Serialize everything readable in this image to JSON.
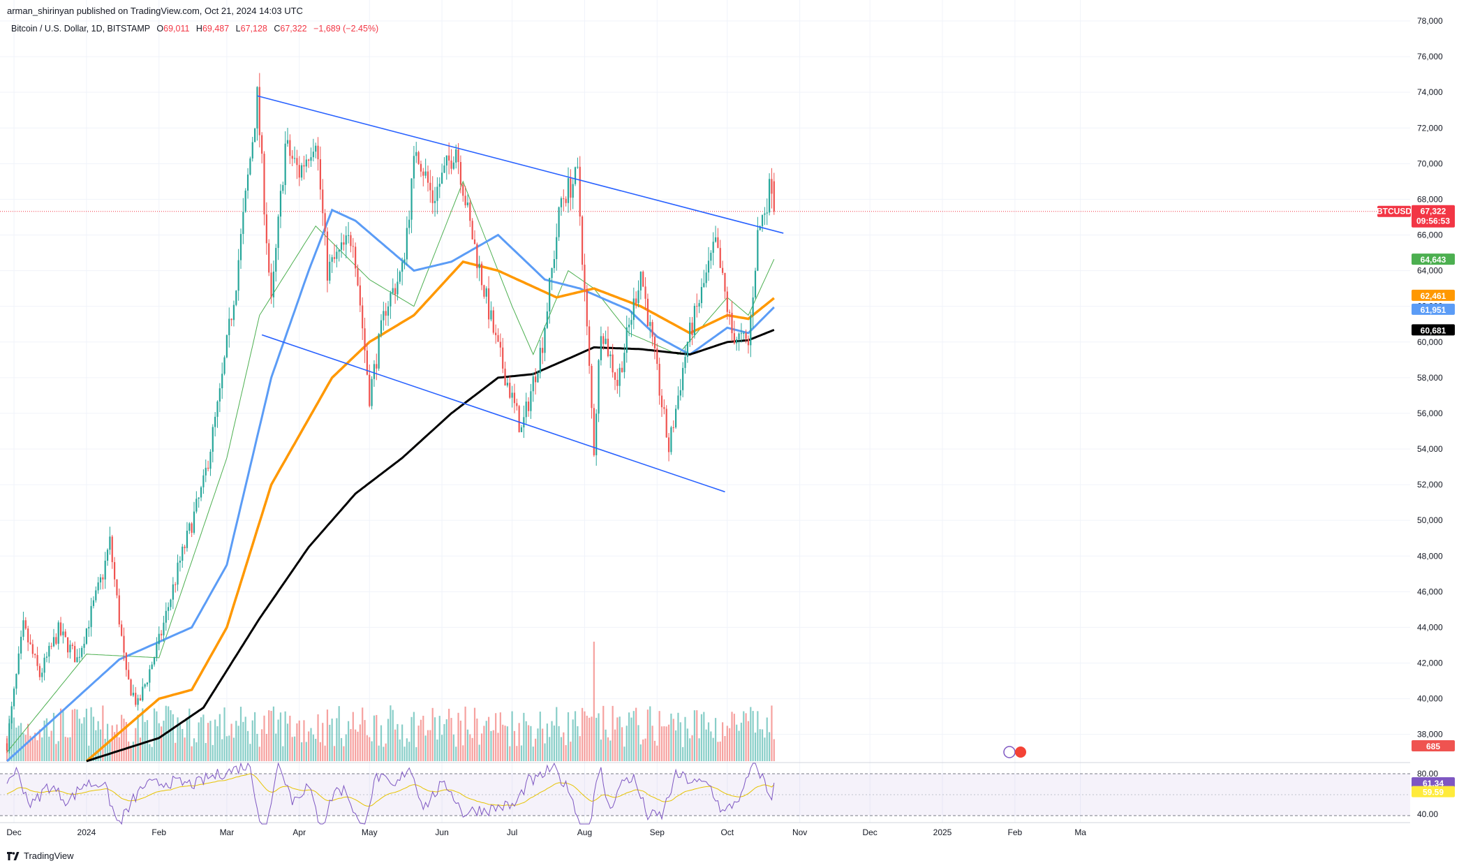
{
  "publisher": "arman_shirinyan published on TradingView.com, Oct 21, 2024 14:03 UTC",
  "header": {
    "symbol": "Bitcoin / U.S. Dollar, 1D, BITSTAMP",
    "o_label": "O",
    "o": "69,011",
    "h_label": "H",
    "h": "69,487",
    "l_label": "L",
    "l": "67,128",
    "c_label": "C",
    "c": "67,322",
    "change": "−1,689 (−2.45%)"
  },
  "footer": {
    "brand": "TradingView"
  },
  "colors": {
    "up": "#26a69a",
    "down": "#ef5350",
    "ema20": "#4caf50",
    "ema50": "#5b9cf6",
    "ma100": "#ff9800",
    "ma200": "#000000",
    "trend": "#2962ff",
    "rsi": "#7e57c2",
    "rsi_ma": "#e6c300"
  },
  "chart_data": {
    "type": "candlestick",
    "symbol_tag": "BTCUSD",
    "last_price": "67,322",
    "countdown": "09:56:53",
    "y_axis": {
      "ylim": [
        36500,
        78000
      ],
      "ticks": [
        "78,000",
        "76,000",
        "74,000",
        "72,000",
        "70,000",
        "68,000",
        "66,000",
        "64,000",
        "62,000",
        "60,000",
        "58,000",
        "56,000",
        "54,000",
        "52,000",
        "50,000",
        "48,000",
        "46,000",
        "44,000",
        "42,000",
        "40,000",
        "38,000"
      ]
    },
    "x_axis": {
      "labels": [
        "Dec",
        "2024",
        "Feb",
        "Mar",
        "Apr",
        "May",
        "Jun",
        "Jul",
        "Aug",
        "Sep",
        "Oct",
        "Nov",
        "Dec",
        "2025",
        "Feb",
        "Ma"
      ]
    },
    "price_tags": [
      {
        "value": "64,643",
        "series": "ema20"
      },
      {
        "value": "62,461",
        "series": "ma100"
      },
      {
        "value": "61,951",
        "series": "ema50"
      },
      {
        "value": "60,681",
        "series": "ma200"
      }
    ],
    "volume_tag": "685",
    "rsi": {
      "ticks": [
        "80.00",
        "40.00"
      ],
      "value": "61.34",
      "ma_value": "59.59",
      "upper": 70,
      "lower": 30
    },
    "anchors": [
      [
        "2023-11-28",
        37500
      ],
      [
        "2023-12-05",
        44000
      ],
      [
        "2023-12-12",
        41300
      ],
      [
        "2023-12-20",
        43800
      ],
      [
        "2023-12-28",
        42200
      ],
      [
        "2024-01-08",
        47000
      ],
      [
        "2024-01-11",
        48800
      ],
      [
        "2024-01-18",
        41200
      ],
      [
        "2024-01-23",
        39600
      ],
      [
        "2024-02-01",
        43200
      ],
      [
        "2024-02-10",
        47700
      ],
      [
        "2024-02-20",
        52000
      ],
      [
        "2024-02-27",
        57000
      ],
      [
        "2024-03-05",
        63500
      ],
      [
        "2024-03-14",
        73700
      ],
      [
        "2024-03-20",
        62000
      ],
      [
        "2024-03-26",
        71000
      ],
      [
        "2024-04-01",
        69500
      ],
      [
        "2024-04-08",
        71600
      ],
      [
        "2024-04-13",
        64000
      ],
      [
        "2024-04-24",
        66000
      ],
      [
        "2024-05-01",
        57000
      ],
      [
        "2024-05-08",
        62000
      ],
      [
        "2024-05-15",
        64000
      ],
      [
        "2024-05-21",
        71000
      ],
      [
        "2024-05-28",
        68000
      ],
      [
        "2024-06-07",
        71000
      ],
      [
        "2024-06-13",
        66500
      ],
      [
        "2024-06-24",
        60000
      ],
      [
        "2024-07-05",
        55000
      ],
      [
        "2024-07-14",
        60000
      ],
      [
        "2024-07-22",
        68000
      ],
      [
        "2024-07-29",
        69300
      ],
      [
        "2024-08-05",
        54000
      ],
      [
        "2024-08-08",
        61000
      ],
      [
        "2024-08-15",
        57700
      ],
      [
        "2024-08-25",
        64000
      ],
      [
        "2024-09-06",
        54000
      ],
      [
        "2024-09-14",
        60000
      ],
      [
        "2024-09-26",
        65500
      ],
      [
        "2024-10-03",
        60500
      ],
      [
        "2024-10-10",
        59800
      ],
      [
        "2024-10-14",
        66000
      ],
      [
        "2024-10-20",
        69000
      ],
      [
        "2024-10-21",
        67322
      ]
    ],
    "last_candle": {
      "o": 69011,
      "h": 69487,
      "l": 67128,
      "c": 67322
    },
    "ma_anchors": {
      "ema20": [
        [
          "2023-11-28",
          37000
        ],
        [
          "2024-01-01",
          42500
        ],
        [
          "2024-02-01",
          42300
        ],
        [
          "2024-03-01",
          53500
        ],
        [
          "2024-03-15",
          61500
        ],
        [
          "2024-04-08",
          66500
        ],
        [
          "2024-05-01",
          63500
        ],
        [
          "2024-05-20",
          62000
        ],
        [
          "2024-06-10",
          69000
        ],
        [
          "2024-07-01",
          62000
        ],
        [
          "2024-07-10",
          59300
        ],
        [
          "2024-07-25",
          64000
        ],
        [
          "2024-08-05",
          63000
        ],
        [
          "2024-08-20",
          60500
        ],
        [
          "2024-09-10",
          59300
        ],
        [
          "2024-10-01",
          62500
        ],
        [
          "2024-10-10",
          61500
        ],
        [
          "2024-10-21",
          64643
        ]
      ],
      "ema50": [
        [
          "2023-11-28",
          36500
        ],
        [
          "2024-01-15",
          42200
        ],
        [
          "2024-02-15",
          44000
        ],
        [
          "2024-03-01",
          47500
        ],
        [
          "2024-03-20",
          58000
        ],
        [
          "2024-04-05",
          64000
        ],
        [
          "2024-04-15",
          67400
        ],
        [
          "2024-04-25",
          66800
        ],
        [
          "2024-05-20",
          64000
        ],
        [
          "2024-06-05",
          64500
        ],
        [
          "2024-06-25",
          66000
        ],
        [
          "2024-07-15",
          63500
        ],
        [
          "2024-07-30",
          63000
        ],
        [
          "2024-08-20",
          61800
        ],
        [
          "2024-09-01",
          60300
        ],
        [
          "2024-09-15",
          59300
        ],
        [
          "2024-10-01",
          60800
        ],
        [
          "2024-10-10",
          60500
        ],
        [
          "2024-10-21",
          61951
        ]
      ],
      "ma100": [
        [
          "2024-01-01",
          36500
        ],
        [
          "2024-02-01",
          40000
        ],
        [
          "2024-02-15",
          40500
        ],
        [
          "2024-03-01",
          44000
        ],
        [
          "2024-03-20",
          52000
        ],
        [
          "2024-04-15",
          58000
        ],
        [
          "2024-05-01",
          60000
        ],
        [
          "2024-05-20",
          61500
        ],
        [
          "2024-06-10",
          64500
        ],
        [
          "2024-06-25",
          64000
        ],
        [
          "2024-07-20",
          62500
        ],
        [
          "2024-08-05",
          63000
        ],
        [
          "2024-08-25",
          62000
        ],
        [
          "2024-09-15",
          60500
        ],
        [
          "2024-10-01",
          61500
        ],
        [
          "2024-10-10",
          61300
        ],
        [
          "2024-10-21",
          62461
        ]
      ],
      "ma200": [
        [
          "2024-01-01",
          36500
        ],
        [
          "2024-02-01",
          37800
        ],
        [
          "2024-02-20",
          39500
        ],
        [
          "2024-03-15",
          44500
        ],
        [
          "2024-04-05",
          48500
        ],
        [
          "2024-04-25",
          51500
        ],
        [
          "2024-05-15",
          53500
        ],
        [
          "2024-06-05",
          56000
        ],
        [
          "2024-06-25",
          58000
        ],
        [
          "2024-07-10",
          58200
        ],
        [
          "2024-08-05",
          59700
        ],
        [
          "2024-08-25",
          59600
        ],
        [
          "2024-09-15",
          59300
        ],
        [
          "2024-10-01",
          60000
        ],
        [
          "2024-10-10",
          60100
        ],
        [
          "2024-10-21",
          60681
        ]
      ]
    },
    "trendlines": [
      {
        "from": [
          "2024-03-14",
          73800
        ],
        "to": [
          "2024-10-25",
          66100
        ]
      },
      {
        "from": [
          "2024-03-16",
          60400
        ],
        "to": [
          "2024-09-30",
          51600
        ]
      }
    ]
  }
}
